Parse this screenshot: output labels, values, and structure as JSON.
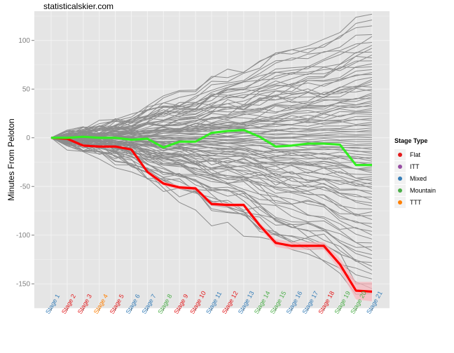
{
  "header": {
    "site": "statisticalskier.com"
  },
  "chart_data": {
    "type": "line",
    "title": "",
    "xlabel": "",
    "ylabel": "Minutes From Peloton",
    "ylim": [
      -175,
      130
    ],
    "y_ticks": [
      100,
      50,
      0,
      -50,
      -100,
      -150
    ],
    "grid": true,
    "legend_position": "right",
    "legend_title": "Stage Type",
    "categories": [
      "Stage 1",
      "Stage 2",
      "Stage 3",
      "Stage 4",
      "Stage 5",
      "Stage 6",
      "Stage 7",
      "Stage 8",
      "Stage 9",
      "Stage 10",
      "Stage 11",
      "Stage 12",
      "Stage 13",
      "Stage 14",
      "Stage 15",
      "Stage 16",
      "Stage 17",
      "Stage 18",
      "Stage 19",
      "Stage 20",
      "Stage 21"
    ],
    "category_types": [
      "Mixed",
      "Flat",
      "Flat",
      "TTT",
      "Flat",
      "Mixed",
      "Mixed",
      "Mountain",
      "Flat",
      "Flat",
      "Mixed",
      "Flat",
      "Mixed",
      "Mountain",
      "Mountain",
      "Mixed",
      "Mixed",
      "Flat",
      "Mountain",
      "Mountain",
      "Mixed"
    ],
    "stage_types": [
      {
        "name": "Flat",
        "color": "#e41a1c"
      },
      {
        "name": "ITT",
        "color": "#984ea3"
      },
      {
        "name": "Mixed",
        "color": "#377eb8"
      },
      {
        "name": "Mountain",
        "color": "#4daf4a"
      },
      {
        "name": "TTT",
        "color": "#ff7f00"
      }
    ],
    "highlighted_series": [
      {
        "color": "#ff0000",
        "values": [
          0,
          -1,
          -8,
          -9,
          -9,
          -12,
          -35,
          -47,
          -51,
          -52,
          -68,
          -69,
          -69,
          -90,
          -108,
          -111,
          -111,
          -111,
          -130,
          -157,
          -158
        ]
      },
      {
        "color": "#33ee22",
        "values": [
          0,
          0,
          1,
          0,
          0,
          -2,
          -1,
          -10,
          -4,
          -4,
          5,
          7,
          8,
          1,
          -9,
          -8,
          -6,
          -6,
          -7,
          -28,
          -28
        ]
      }
    ],
    "band_series": {
      "color": "#f8b4bb",
      "upper": [
        0,
        -1,
        -7,
        -8,
        -8,
        -11,
        -33,
        -45,
        -49,
        -50,
        -66,
        -67,
        -67,
        -87,
        -104,
        -107,
        -107,
        -107,
        -124,
        -148,
        -148
      ],
      "lower": [
        0,
        -1,
        -9,
        -10,
        -10,
        -13,
        -37,
        -49,
        -53,
        -54,
        -70,
        -71,
        -71,
        -93,
        -112,
        -115,
        -115,
        -115,
        -136,
        -166,
        -168
      ]
    },
    "background_series_finals": [
      127,
      121,
      115,
      106,
      104,
      98,
      95,
      92,
      88,
      85,
      82,
      79,
      76,
      73,
      70,
      67,
      65,
      62,
      60,
      58,
      55,
      52,
      50,
      48,
      46,
      44,
      42,
      40,
      38,
      36,
      34,
      32,
      30,
      28,
      26,
      24,
      22,
      20,
      18,
      16,
      14,
      12,
      10,
      8,
      6,
      4,
      2,
      0,
      -2,
      -4,
      -6,
      -8,
      -10,
      -12,
      -14,
      -16,
      -18,
      -20,
      -22,
      -24,
      -26,
      -28,
      -30,
      -32,
      -34,
      -36,
      -38,
      -40,
      -42,
      -44,
      -46,
      -48,
      -50,
      -52,
      -55,
      -58,
      -61,
      -64,
      -67,
      -70,
      -73,
      -76,
      -80,
      -84,
      -88,
      -92,
      -96,
      -100,
      -104,
      -108,
      -112,
      -116,
      -120,
      -124,
      -128,
      -132,
      -136,
      -140,
      -145,
      -150,
      -155,
      -160
    ]
  }
}
